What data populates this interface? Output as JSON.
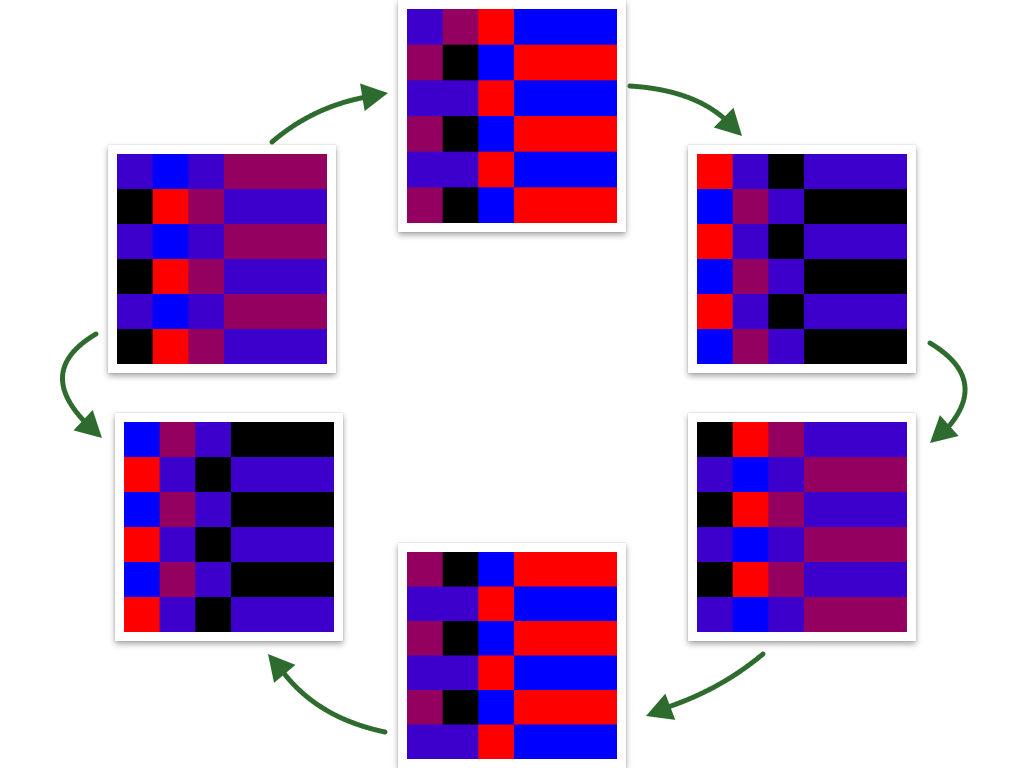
{
  "palette": {
    "R": "#ff0000",
    "B": "#0000ff",
    "V": "#3d00cc",
    "M": "#940060",
    "K": "#000000"
  },
  "arrow_color": "#2e6b2e",
  "cards": [
    {
      "id": "card-top",
      "rows": [
        [
          "V",
          "M",
          "R",
          "B"
        ],
        [
          "M",
          "K",
          "B",
          "R"
        ],
        [
          "V",
          "V",
          "R",
          "B"
        ],
        [
          "M",
          "K",
          "B",
          "R"
        ],
        [
          "V",
          "V",
          "R",
          "B"
        ],
        [
          "M",
          "K",
          "B",
          "R"
        ]
      ]
    },
    {
      "id": "card-upper-right",
      "rows": [
        [
          "R",
          "V",
          "K",
          "V"
        ],
        [
          "B",
          "M",
          "V",
          "K"
        ],
        [
          "R",
          "V",
          "K",
          "V"
        ],
        [
          "B",
          "M",
          "V",
          "K"
        ],
        [
          "R",
          "V",
          "K",
          "V"
        ],
        [
          "B",
          "M",
          "V",
          "K"
        ]
      ]
    },
    {
      "id": "card-lower-right",
      "rows": [
        [
          "K",
          "R",
          "M",
          "V"
        ],
        [
          "V",
          "B",
          "V",
          "M"
        ],
        [
          "K",
          "R",
          "M",
          "V"
        ],
        [
          "V",
          "B",
          "V",
          "M"
        ],
        [
          "K",
          "R",
          "M",
          "V"
        ],
        [
          "V",
          "B",
          "V",
          "M"
        ]
      ]
    },
    {
      "id": "card-bottom",
      "rows": [
        [
          "M",
          "K",
          "B",
          "R"
        ],
        [
          "V",
          "V",
          "R",
          "B"
        ],
        [
          "M",
          "K",
          "B",
          "R"
        ],
        [
          "V",
          "V",
          "R",
          "B"
        ],
        [
          "M",
          "K",
          "B",
          "R"
        ],
        [
          "V",
          "V",
          "R",
          "B"
        ]
      ]
    },
    {
      "id": "card-lower-left",
      "rows": [
        [
          "B",
          "M",
          "V",
          "K"
        ],
        [
          "R",
          "V",
          "K",
          "V"
        ],
        [
          "B",
          "M",
          "V",
          "K"
        ],
        [
          "R",
          "V",
          "K",
          "V"
        ],
        [
          "B",
          "M",
          "V",
          "K"
        ],
        [
          "R",
          "V",
          "K",
          "V"
        ]
      ]
    },
    {
      "id": "card-upper-left",
      "rows": [
        [
          "V",
          "B",
          "V",
          "M"
        ],
        [
          "K",
          "R",
          "M",
          "V"
        ],
        [
          "V",
          "B",
          "V",
          "M"
        ],
        [
          "K",
          "R",
          "M",
          "V"
        ],
        [
          "V",
          "B",
          "V",
          "M"
        ],
        [
          "K",
          "R",
          "M",
          "V"
        ]
      ]
    }
  ],
  "arrows": [
    {
      "name": "arrow-upper-left-to-top"
    },
    {
      "name": "arrow-top-to-upper-right"
    },
    {
      "name": "arrow-upper-right-to-lower-right"
    },
    {
      "name": "arrow-lower-right-to-bottom"
    },
    {
      "name": "arrow-bottom-to-lower-left"
    },
    {
      "name": "arrow-upper-left-to-lower-left"
    }
  ]
}
